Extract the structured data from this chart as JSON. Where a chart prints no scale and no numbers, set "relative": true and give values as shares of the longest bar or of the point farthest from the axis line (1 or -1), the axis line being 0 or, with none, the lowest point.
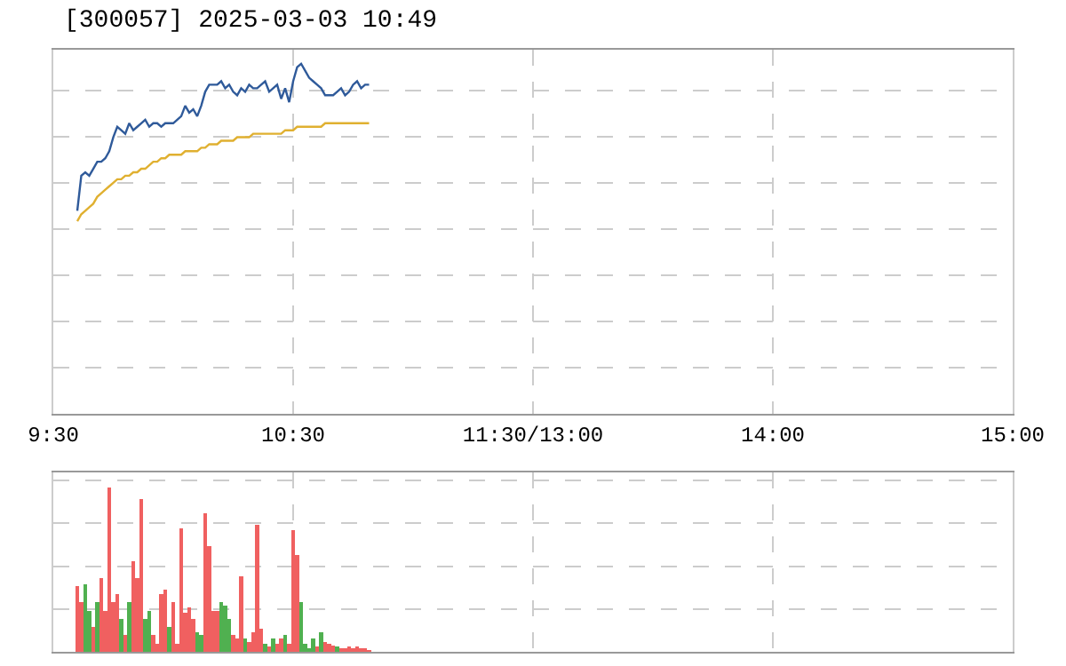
{
  "chart_data": [
    {
      "type": "line",
      "title": "[300057] 2025-03-03 10:49",
      "relative": true,
      "grid": true,
      "categories": [
        "9:30",
        null,
        null,
        null,
        null,
        null,
        null,
        null,
        null,
        null,
        null,
        null,
        null,
        null,
        null,
        null,
        null,
        null,
        null,
        null,
        null,
        null,
        null,
        null,
        null,
        null,
        null,
        null,
        null,
        null,
        null,
        null,
        null,
        null,
        null,
        null,
        null,
        null,
        null,
        null,
        null,
        null,
        null,
        null,
        null,
        null,
        null,
        null,
        null,
        null,
        null,
        null,
        null,
        null,
        null,
        null,
        null,
        null,
        null,
        null,
        "10:30",
        null,
        null,
        null,
        null,
        null,
        null,
        null,
        null,
        null,
        null,
        null,
        null,
        null,
        null,
        null,
        null,
        null,
        null,
        null,
        null,
        null,
        null,
        null,
        null,
        null,
        null,
        null,
        null,
        null,
        null,
        null,
        null,
        null,
        null,
        null,
        null,
        null,
        null,
        null,
        null,
        null,
        null,
        null,
        null,
        null,
        null,
        null,
        null,
        null,
        null,
        null,
        null,
        null,
        null,
        null,
        null,
        null,
        null,
        null,
        "11:30/13:00",
        null,
        null,
        null,
        null,
        null,
        null,
        null,
        null,
        null,
        null,
        null,
        null,
        null,
        null,
        null,
        null,
        null,
        null,
        null,
        null,
        null,
        null,
        null,
        null,
        null,
        null,
        null,
        null,
        null,
        null,
        null,
        null,
        null,
        null,
        null,
        null,
        null,
        null,
        null,
        null,
        null,
        null,
        null,
        null,
        null,
        null,
        null,
        null,
        null,
        null,
        null,
        null,
        null,
        null,
        null,
        null,
        null,
        null,
        null,
        "14:00",
        null,
        null,
        null,
        null,
        null,
        null,
        null,
        null,
        null,
        null,
        null,
        null,
        null,
        null,
        null,
        null,
        null,
        null,
        null,
        null,
        null,
        null,
        null,
        null,
        null,
        null,
        null,
        null,
        null,
        null,
        null,
        null,
        null,
        null,
        null,
        null,
        null,
        null,
        null,
        null,
        null,
        null,
        null,
        null,
        null,
        null,
        null,
        null,
        null,
        null,
        null,
        null,
        null,
        null,
        null,
        null,
        null,
        null,
        null,
        "15:00"
      ],
      "series": [
        {
          "color": "#2f5a9a",
          "values": [
            null,
            null,
            null,
            null,
            null,
            null,
            0.58,
            0.68,
            0.69,
            0.68,
            0.7,
            0.72,
            0.72,
            0.73,
            0.75,
            0.79,
            0.82,
            0.81,
            0.8,
            0.83,
            0.81,
            0.82,
            0.83,
            0.84,
            0.82,
            0.83,
            0.83,
            0.82,
            0.83,
            0.83,
            0.83,
            0.84,
            0.85,
            0.88,
            0.86,
            0.87,
            0.85,
            0.88,
            0.92,
            0.94,
            0.94,
            0.94,
            0.95,
            0.93,
            0.94,
            0.92,
            0.91,
            0.93,
            0.92,
            0.94,
            0.93,
            0.93,
            0.94,
            0.95,
            0.92,
            0.93,
            0.94,
            0.9,
            0.93,
            0.89,
            0.95,
            0.99,
            1,
            0.98,
            0.96,
            0.95,
            0.94,
            0.93,
            0.91,
            0.91,
            0.91,
            0.92,
            0.93,
            0.91,
            0.92,
            0.94,
            0.95,
            0.93,
            0.94,
            0.94,
            null,
            null,
            null,
            null,
            null,
            null,
            null,
            null,
            null,
            null,
            null,
            null,
            null,
            null,
            null,
            null,
            null,
            null,
            null,
            null,
            null,
            null,
            null,
            null,
            null,
            null,
            null,
            null,
            null,
            null,
            null,
            null,
            null,
            null,
            null,
            null,
            null,
            null,
            null,
            null,
            null,
            null,
            null,
            null,
            null,
            null,
            null,
            null,
            null,
            null,
            null,
            null,
            null,
            null,
            null,
            null,
            null,
            null,
            null,
            null,
            null,
            null,
            null,
            null,
            null,
            null,
            null,
            null,
            null,
            null,
            null,
            null,
            null,
            null,
            null,
            null,
            null,
            null,
            null,
            null,
            null,
            null,
            null,
            null,
            null,
            null,
            null,
            null,
            null,
            null,
            null,
            null,
            null,
            null,
            null,
            null,
            null,
            null,
            null,
            null,
            null,
            null,
            null,
            null,
            null,
            null,
            null,
            null,
            null,
            null,
            null,
            null,
            null,
            null,
            null,
            null,
            null,
            null,
            null,
            null,
            null,
            null,
            null,
            null,
            null,
            null,
            null,
            null,
            null,
            null,
            null,
            null,
            null,
            null,
            null,
            null,
            null,
            null,
            null,
            null,
            null,
            null,
            null,
            null,
            null,
            null,
            null,
            null,
            null,
            null,
            null,
            null,
            null,
            null,
            null,
            null,
            null,
            null,
            null,
            null,
            null
          ]
        },
        {
          "color": "#e0b030",
          "values": [
            null,
            null,
            null,
            null,
            null,
            null,
            0.55,
            0.57,
            0.58,
            0.59,
            0.6,
            0.62,
            0.63,
            0.64,
            0.65,
            0.66,
            0.67,
            0.67,
            0.68,
            0.68,
            0.69,
            0.69,
            0.7,
            0.7,
            0.71,
            0.72,
            0.72,
            0.73,
            0.73,
            0.74,
            0.74,
            0.74,
            0.74,
            0.75,
            0.75,
            0.75,
            0.75,
            0.76,
            0.76,
            0.77,
            0.77,
            0.77,
            0.78,
            0.78,
            0.78,
            0.78,
            0.79,
            0.79,
            0.79,
            0.79,
            0.8,
            0.8,
            0.8,
            0.8,
            0.8,
            0.8,
            0.8,
            0.8,
            0.81,
            0.81,
            0.81,
            0.82,
            0.82,
            0.82,
            0.82,
            0.82,
            0.82,
            0.82,
            0.83,
            0.83,
            0.83,
            0.83,
            0.83,
            0.83,
            0.83,
            0.83,
            0.83,
            0.83,
            0.83,
            0.83,
            null,
            null,
            null,
            null,
            null,
            null,
            null,
            null,
            null,
            null,
            null,
            null,
            null,
            null,
            null,
            null,
            null,
            null,
            null,
            null,
            null,
            null,
            null,
            null,
            null,
            null,
            null,
            null,
            null,
            null,
            null,
            null,
            null,
            null,
            null,
            null,
            null,
            null,
            null,
            null,
            null,
            null,
            null,
            null,
            null,
            null,
            null,
            null,
            null,
            null,
            null,
            null,
            null,
            null,
            null,
            null,
            null,
            null,
            null,
            null,
            null,
            null,
            null,
            null,
            null,
            null,
            null,
            null,
            null,
            null,
            null,
            null,
            null,
            null,
            null,
            null,
            null,
            null,
            null,
            null,
            null,
            null,
            null,
            null,
            null,
            null,
            null,
            null,
            null,
            null,
            null,
            null,
            null,
            null,
            null,
            null,
            null,
            null,
            null,
            null,
            null,
            null,
            null,
            null,
            null,
            null,
            null,
            null,
            null,
            null,
            null,
            null,
            null,
            null,
            null,
            null,
            null,
            null,
            null,
            null,
            null,
            null,
            null,
            null,
            null,
            null,
            null,
            null,
            null,
            null,
            null,
            null,
            null,
            null,
            null,
            null,
            null,
            null,
            null,
            null,
            null,
            null,
            null,
            null,
            null,
            null,
            null,
            null,
            null,
            null,
            null,
            null,
            null,
            null,
            null,
            null,
            null,
            null,
            null,
            null,
            null
          ]
        }
      ]
    },
    {
      "type": "bar",
      "relative": true,
      "grid": true,
      "categories": [
        null,
        null,
        null,
        null,
        null,
        null,
        null,
        null,
        null,
        null,
        null,
        null,
        null,
        null,
        null,
        null,
        null,
        null,
        null,
        null,
        null,
        null,
        null,
        null,
        null,
        null,
        null,
        null,
        null,
        null,
        null,
        null,
        null,
        null,
        null,
        null,
        null,
        null,
        null,
        null,
        null,
        null,
        null,
        null,
        null,
        null,
        null,
        null,
        null,
        null,
        null,
        null,
        null,
        null,
        null,
        null,
        null,
        null,
        null,
        null,
        null,
        null,
        null,
        null,
        null,
        null,
        null,
        null,
        null,
        null,
        null,
        null,
        null,
        null,
        null,
        null,
        null,
        null,
        null,
        null,
        null,
        null,
        null,
        null,
        null,
        null,
        null,
        null,
        null,
        null,
        null,
        null,
        null,
        null,
        null,
        null,
        null,
        null,
        null,
        null,
        null,
        null,
        null,
        null,
        null,
        null,
        null,
        null,
        null,
        null,
        null,
        null,
        null,
        null,
        null,
        null,
        null,
        null,
        null,
        null,
        null,
        null,
        null,
        null,
        null,
        null,
        null,
        null,
        null,
        null,
        null,
        null,
        null,
        null,
        null,
        null,
        null,
        null,
        null,
        null,
        null,
        null,
        null,
        null,
        null,
        null,
        null,
        null,
        null,
        null,
        null,
        null,
        null,
        null,
        null,
        null,
        null,
        null,
        null,
        null,
        null,
        null,
        null,
        null,
        null,
        null,
        null,
        null,
        null,
        null,
        null,
        null,
        null,
        null,
        null,
        null,
        null,
        null,
        null,
        null,
        null,
        null,
        null,
        null,
        null,
        null,
        null,
        null,
        null,
        null,
        null,
        null,
        null,
        null,
        null,
        null,
        null,
        null,
        null,
        null,
        null,
        null,
        null,
        null,
        null,
        null,
        null,
        null,
        null,
        null,
        null,
        null,
        null,
        null,
        null,
        null,
        null,
        null,
        null,
        null,
        null,
        null,
        null,
        null,
        null,
        null,
        null,
        null,
        null,
        null,
        null,
        null,
        null,
        null,
        null,
        null,
        null,
        null,
        null,
        null,
        null
      ],
      "values": [
        null,
        null,
        null,
        null,
        null,
        null,
        0.4,
        0.3,
        0.41,
        0.25,
        0.15,
        0.3,
        0.45,
        0.25,
        1,
        0.3,
        0.35,
        0.2,
        0.1,
        0.3,
        0.55,
        0.45,
        0.93,
        0.2,
        0.25,
        0.1,
        0.05,
        0.35,
        0.38,
        0.15,
        0.3,
        0.05,
        0.75,
        0.24,
        0.27,
        0.2,
        0.12,
        0.1,
        0.84,
        0.64,
        0.25,
        0.25,
        0.3,
        0.28,
        0.2,
        0.1,
        0.08,
        0.46,
        0.08,
        0.06,
        0.12,
        0.77,
        0.14,
        0.05,
        0.03,
        0.08,
        0.05,
        0.08,
        0.1,
        0.05,
        0.74,
        0.59,
        0.3,
        0.05,
        0.02,
        0.08,
        0.03,
        0.12,
        0.06,
        0.05,
        0.04,
        0.03,
        0.02,
        0.02,
        0.03,
        0.02,
        0.03,
        0.02,
        0.02,
        0.01,
        null,
        null,
        null,
        null,
        null,
        null,
        null,
        null,
        null,
        null,
        null,
        null,
        null,
        null,
        null,
        null,
        null,
        null,
        null,
        null,
        null,
        null,
        null,
        null,
        null,
        null,
        null,
        null,
        null,
        null,
        null,
        null,
        null,
        null,
        null,
        null,
        null,
        null,
        null,
        null,
        null,
        null,
        null,
        null,
        null,
        null,
        null,
        null,
        null,
        null,
        null,
        null,
        null,
        null,
        null,
        null,
        null,
        null,
        null,
        null,
        null,
        null,
        null,
        null,
        null,
        null,
        null,
        null,
        null,
        null,
        null,
        null,
        null,
        null,
        null,
        null,
        null,
        null,
        null,
        null,
        null,
        null,
        null,
        null,
        null,
        null,
        null,
        null,
        null,
        null,
        null,
        null,
        null,
        null,
        null,
        null,
        null,
        null,
        null,
        null,
        null,
        null,
        null,
        null,
        null,
        null,
        null,
        null,
        null,
        null,
        null,
        null,
        null,
        null,
        null,
        null,
        null,
        null,
        null,
        null,
        null,
        null,
        null,
        null,
        null,
        null,
        null,
        null,
        null,
        null,
        null,
        null,
        null,
        null,
        null,
        null,
        null,
        null,
        null,
        null,
        null,
        null,
        null,
        null,
        null,
        null,
        null,
        null,
        null,
        null,
        null,
        null,
        null,
        null,
        null,
        null,
        null,
        null,
        null,
        null,
        null
      ],
      "colors": [
        null,
        null,
        null,
        null,
        null,
        null,
        "#f06060",
        "#f06060",
        "#50b050",
        "#50b050",
        "#f06060",
        "#50b050",
        "#f06060",
        "#f06060",
        "#f06060",
        "#f06060",
        "#f06060",
        "#50b050",
        "#f06060",
        "#50b050",
        "#f06060",
        "#f06060",
        "#f06060",
        "#50b050",
        "#50b050",
        "#f06060",
        "#f06060",
        "#f06060",
        "#f06060",
        "#50b050",
        "#f06060",
        "#f06060",
        "#f06060",
        "#f06060",
        "#f06060",
        "#f06060",
        "#50b050",
        "#50b050",
        "#f06060",
        "#f06060",
        "#f06060",
        "#f06060",
        "#50b050",
        "#50b050",
        "#50b050",
        "#f06060",
        "#f06060",
        "#f06060",
        "#50b050",
        "#f06060",
        "#f06060",
        "#f06060",
        "#f06060",
        "#50b050",
        "#f06060",
        "#50b050",
        "#f06060",
        "#f06060",
        "#50b050",
        "#f06060",
        "#f06060",
        "#f06060",
        "#50b050",
        "#50b050",
        "#50b050",
        "#50b050",
        "#f06060",
        "#50b050",
        "#f06060",
        "#f06060",
        "#f06060",
        "#50b050",
        "#f06060",
        "#f06060",
        "#f06060",
        "#f06060",
        "#f06060",
        "#f06060",
        "#f06060",
        "#f06060",
        null,
        null,
        null,
        null,
        null,
        null,
        null,
        null,
        null,
        null,
        null,
        null,
        null,
        null,
        null,
        null,
        null,
        null,
        null,
        null,
        null,
        null,
        null,
        null,
        null,
        null,
        null,
        null,
        null,
        null,
        null,
        null,
        null,
        null,
        null,
        null,
        null,
        null,
        null,
        null,
        null,
        null,
        null,
        null,
        null,
        null,
        null,
        null,
        null,
        null,
        null,
        null,
        null,
        null,
        null,
        null,
        null,
        null,
        null,
        null,
        null,
        null,
        null,
        null,
        null,
        null,
        null,
        null,
        null,
        null,
        null,
        null,
        null,
        null,
        null,
        null,
        null,
        null,
        null,
        null,
        null,
        null,
        null,
        null,
        null,
        null,
        null,
        null,
        null,
        null,
        null,
        null,
        null,
        null,
        null,
        null,
        null,
        null,
        null,
        null,
        null,
        null,
        null,
        null,
        null,
        null,
        null,
        null,
        null,
        null,
        null,
        null,
        null,
        null,
        null,
        null,
        null,
        null,
        null,
        null,
        null,
        null,
        null,
        null,
        null,
        null,
        null,
        null,
        null,
        null,
        null,
        null,
        null,
        null,
        null,
        null,
        null,
        null,
        null,
        null,
        null,
        null,
        null,
        null,
        null,
        null,
        null,
        null,
        null,
        null,
        null,
        null,
        null,
        null,
        null,
        null,
        null,
        null,
        null,
        null,
        null
      ]
    }
  ]
}
